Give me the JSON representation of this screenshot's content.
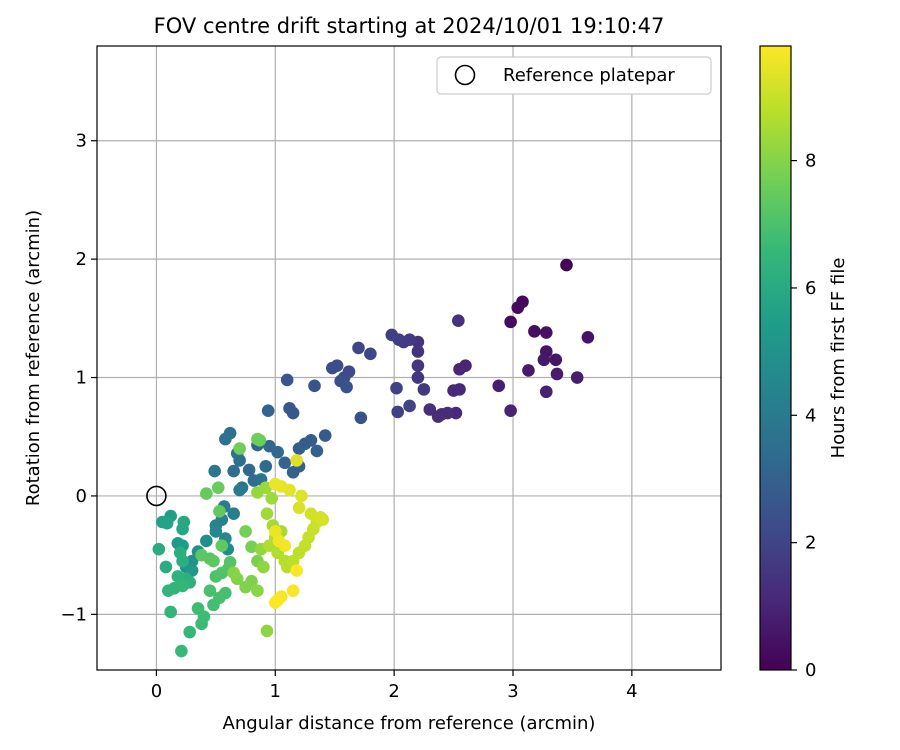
{
  "chart_data": {
    "type": "scatter",
    "title": "FOV centre drift starting at 2024/10/01 19:10:47",
    "xlabel": "Angular distance from reference (arcmin)",
    "ylabel": "Rotation from reference (arcmin)",
    "xlim": [
      -0.5,
      4.75
    ],
    "ylim": [
      -1.47,
      3.8
    ],
    "xticks": [
      0,
      1,
      2,
      3,
      4
    ],
    "yticks": [
      -1,
      0,
      1,
      2,
      3
    ],
    "grid": true,
    "legend": {
      "position": "top-right",
      "entries": [
        "Reference platepar"
      ]
    },
    "reference_point": {
      "x": 0,
      "y": 0,
      "label": "Reference platepar"
    },
    "colorbar": {
      "label": "Hours from first FF file",
      "range": [
        0,
        9.8
      ],
      "ticks": [
        0,
        2,
        4,
        6,
        8
      ],
      "colormap": "viridis"
    },
    "series": [
      {
        "points": [
          [
            3.45,
            1.95,
            0.1
          ],
          [
            3.08,
            1.64,
            0.2
          ],
          [
            3.04,
            1.59,
            0.25
          ],
          [
            2.98,
            1.47,
            0.3
          ],
          [
            3.18,
            1.39,
            0.4
          ],
          [
            3.28,
            1.38,
            0.45
          ],
          [
            3.63,
            1.34,
            0.5
          ],
          [
            3.28,
            1.22,
            0.55
          ],
          [
            3.36,
            1.15,
            0.6
          ],
          [
            3.26,
            1.15,
            0.65
          ],
          [
            3.13,
            1.06,
            0.7
          ],
          [
            3.37,
            1.03,
            0.75
          ],
          [
            3.54,
            1.0,
            0.8
          ],
          [
            2.88,
            0.93,
            0.85
          ],
          [
            3.28,
            0.88,
            0.9
          ],
          [
            2.98,
            0.72,
            0.95
          ],
          [
            2.6,
            1.1,
            1.0
          ],
          [
            2.55,
            1.07,
            1.05
          ],
          [
            2.55,
            0.9,
            1.1
          ],
          [
            2.5,
            0.89,
            1.15
          ],
          [
            2.52,
            0.7,
            1.2
          ],
          [
            2.45,
            0.7,
            1.25
          ],
          [
            2.37,
            0.67,
            1.3
          ],
          [
            2.4,
            0.69,
            1.3
          ],
          [
            2.3,
            0.73,
            1.35
          ],
          [
            2.54,
            1.48,
            1.4
          ],
          [
            2.2,
            1.3,
            1.45
          ],
          [
            2.2,
            1.22,
            1.5
          ],
          [
            2.2,
            1.1,
            1.55
          ],
          [
            2.2,
            1.0,
            1.6
          ],
          [
            2.25,
            0.9,
            1.65
          ],
          [
            2.13,
            1.32,
            1.7
          ],
          [
            2.08,
            1.3,
            1.75
          ],
          [
            2.04,
            1.32,
            1.8
          ],
          [
            1.98,
            1.36,
            1.85
          ],
          [
            2.02,
            0.91,
            1.9
          ],
          [
            2.03,
            0.71,
            1.95
          ],
          [
            2.13,
            0.76,
            2.0
          ],
          [
            1.8,
            1.2,
            2.1
          ],
          [
            1.7,
            1.25,
            2.15
          ],
          [
            1.62,
            1.05,
            2.2
          ],
          [
            1.58,
            1.0,
            2.25
          ],
          [
            1.52,
            1.1,
            2.3
          ],
          [
            1.48,
            1.08,
            2.35
          ],
          [
            1.55,
            0.97,
            2.4
          ],
          [
            1.6,
            0.92,
            2.45
          ],
          [
            1.72,
            0.66,
            2.5
          ],
          [
            1.33,
            0.93,
            2.55
          ],
          [
            1.1,
            0.98,
            2.6
          ],
          [
            1.12,
            0.74,
            2.65
          ],
          [
            1.15,
            0.7,
            2.7
          ],
          [
            1.42,
            0.51,
            2.75
          ],
          [
            1.3,
            0.47,
            2.8
          ],
          [
            1.25,
            0.44,
            2.85
          ],
          [
            1.2,
            0.4,
            2.9
          ],
          [
            1.35,
            0.38,
            2.95
          ],
          [
            1.2,
            0.25,
            3.0
          ],
          [
            1.08,
            0.28,
            3.05
          ],
          [
            1.15,
            0.2,
            3.1
          ],
          [
            0.94,
            0.72,
            3.15
          ],
          [
            0.85,
            0.43,
            3.2
          ],
          [
            0.95,
            0.42,
            3.25
          ],
          [
            1.02,
            0.37,
            3.3
          ],
          [
            0.92,
            0.25,
            3.35
          ],
          [
            0.78,
            0.22,
            3.4
          ],
          [
            0.82,
            0.13,
            3.45
          ],
          [
            0.7,
            0.3,
            3.5
          ],
          [
            0.65,
            0.21,
            3.55
          ],
          [
            0.68,
            0.36,
            3.6
          ],
          [
            0.62,
            0.53,
            3.65
          ],
          [
            0.58,
            0.48,
            3.7
          ],
          [
            0.88,
            0.14,
            3.75
          ],
          [
            0.72,
            0.07,
            3.8
          ],
          [
            0.49,
            0.21,
            3.9
          ],
          [
            0.7,
            0.05,
            4.0
          ],
          [
            0.57,
            -0.09,
            4.1
          ],
          [
            0.65,
            -0.15,
            4.2
          ],
          [
            0.55,
            -0.2,
            4.3
          ],
          [
            0.5,
            -0.25,
            4.4
          ],
          [
            0.5,
            -0.3,
            4.5
          ],
          [
            0.58,
            -0.36,
            4.6
          ],
          [
            0.6,
            -0.45,
            4.7
          ],
          [
            0.42,
            -0.38,
            4.8
          ],
          [
            0.35,
            -0.47,
            4.9
          ],
          [
            0.3,
            -0.55,
            5.0
          ],
          [
            0.25,
            -0.6,
            5.1
          ],
          [
            0.3,
            -0.63,
            5.2
          ],
          [
            0.18,
            -0.4,
            5.3
          ],
          [
            0.22,
            -0.42,
            5.4
          ],
          [
            0.12,
            -0.17,
            5.5
          ],
          [
            0.05,
            -0.22,
            5.6
          ],
          [
            0.09,
            -0.23,
            5.7
          ],
          [
            0.22,
            -0.28,
            5.8
          ],
          [
            0.23,
            -0.22,
            5.9
          ],
          [
            0.02,
            -0.45,
            6.0
          ],
          [
            0.08,
            -0.6,
            6.05
          ],
          [
            0.2,
            -0.48,
            6.1
          ],
          [
            0.22,
            -0.55,
            6.15
          ],
          [
            0.25,
            -0.7,
            6.2
          ],
          [
            0.28,
            -0.73,
            6.25
          ],
          [
            0.18,
            -0.68,
            6.3
          ],
          [
            0.15,
            -0.78,
            6.35
          ],
          [
            0.1,
            -0.8,
            6.4
          ],
          [
            0.12,
            -0.98,
            6.45
          ],
          [
            0.22,
            -0.76,
            6.5
          ],
          [
            0.28,
            -1.15,
            6.55
          ],
          [
            0.21,
            -1.31,
            6.6
          ],
          [
            0.38,
            -1.08,
            6.65
          ],
          [
            0.4,
            -1.02,
            6.7
          ],
          [
            0.35,
            -0.95,
            6.75
          ],
          [
            0.48,
            -0.92,
            6.8
          ],
          [
            0.53,
            -0.86,
            6.85
          ],
          [
            0.58,
            -0.82,
            6.9
          ],
          [
            0.45,
            -0.8,
            6.95
          ],
          [
            0.5,
            -0.68,
            7.0
          ],
          [
            0.55,
            -0.65,
            7.05
          ],
          [
            0.6,
            -0.62,
            7.1
          ],
          [
            0.62,
            -0.56,
            7.15
          ],
          [
            0.45,
            -0.53,
            7.2
          ],
          [
            0.38,
            -0.5,
            7.25
          ],
          [
            0.48,
            -0.55,
            7.3
          ],
          [
            0.55,
            -0.42,
            7.35
          ],
          [
            0.53,
            -0.13,
            7.4
          ],
          [
            0.42,
            0.02,
            7.45
          ],
          [
            0.52,
            0.07,
            7.5
          ],
          [
            0.87,
            0.47,
            7.55
          ],
          [
            0.85,
            0.48,
            7.6
          ],
          [
            0.7,
            0.4,
            7.65
          ],
          [
            0.75,
            -0.3,
            7.7
          ],
          [
            0.8,
            -0.43,
            7.75
          ],
          [
            0.85,
            -0.55,
            7.8
          ],
          [
            0.8,
            -0.72,
            7.85
          ],
          [
            0.75,
            -0.77,
            7.9
          ],
          [
            0.68,
            -0.7,
            7.95
          ],
          [
            0.65,
            -0.65,
            8.0
          ],
          [
            0.85,
            -0.8,
            8.05
          ],
          [
            0.93,
            -1.14,
            8.1
          ],
          [
            0.9,
            -0.6,
            8.15
          ],
          [
            0.88,
            -0.45,
            8.2
          ],
          [
            0.85,
            0.03,
            8.25
          ],
          [
            0.92,
            0.07,
            8.3
          ],
          [
            0.97,
            -0.02,
            8.35
          ],
          [
            0.93,
            -0.15,
            8.4
          ],
          [
            0.98,
            -0.25,
            8.45
          ],
          [
            1.05,
            -0.3,
            8.5
          ],
          [
            1.0,
            -0.35,
            8.55
          ],
          [
            0.95,
            -0.42,
            8.6
          ],
          [
            1.02,
            -0.48,
            8.65
          ],
          [
            1.08,
            -0.55,
            8.7
          ],
          [
            1.1,
            -0.6,
            8.75
          ],
          [
            1.15,
            -0.55,
            8.8
          ],
          [
            1.2,
            -0.48,
            8.85
          ],
          [
            1.25,
            -0.42,
            8.9
          ],
          [
            1.28,
            -0.35,
            8.95
          ],
          [
            1.32,
            -0.28,
            9.0
          ],
          [
            1.35,
            -0.22,
            9.05
          ],
          [
            1.3,
            -0.15,
            9.1
          ],
          [
            1.38,
            -0.18,
            9.15
          ],
          [
            1.4,
            -0.2,
            9.2
          ],
          [
            1.2,
            -0.1,
            9.25
          ],
          [
            1.22,
            0.0,
            9.3
          ],
          [
            1.18,
            0.3,
            9.35
          ],
          [
            1.12,
            0.05,
            9.4
          ],
          [
            1.05,
            0.08,
            9.45
          ],
          [
            1.0,
            0.1,
            9.5
          ],
          [
            1.0,
            -0.3,
            9.55
          ],
          [
            1.03,
            -0.38,
            9.6
          ],
          [
            1.08,
            -0.42,
            9.65
          ],
          [
            1.15,
            -0.8,
            9.7
          ],
          [
            1.05,
            -0.85,
            9.72
          ],
          [
            1.02,
            -0.88,
            9.75
          ],
          [
            1.0,
            -0.9,
            9.78
          ],
          [
            1.18,
            -0.63,
            9.8
          ]
        ]
      }
    ]
  }
}
